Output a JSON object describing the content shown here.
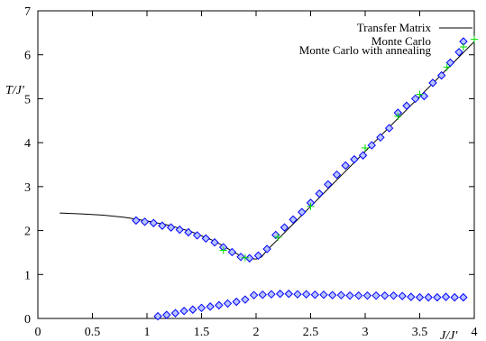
{
  "chart_data": {
    "type": "scatter",
    "xlabel": "J/J'",
    "ylabel": "T/J'",
    "xlim": [
      0,
      4
    ],
    "ylim": [
      0,
      7
    ],
    "xticks": [
      "0",
      "0.5",
      "1",
      "1.5",
      "2",
      "2.5",
      "3",
      "3.5",
      "4"
    ],
    "yticks": [
      "0",
      "1",
      "2",
      "3",
      "4",
      "5",
      "6",
      "7"
    ],
    "grid": false,
    "legend": "top-right",
    "series": [
      {
        "name": "Transfer Matrix",
        "kind": "line",
        "color": "#000000",
        "points": [
          [
            0.2,
            2.4
          ],
          [
            0.4,
            2.38
          ],
          [
            0.6,
            2.35
          ],
          [
            0.8,
            2.3
          ],
          [
            1.0,
            2.22
          ],
          [
            1.2,
            2.12
          ],
          [
            1.4,
            1.98
          ],
          [
            1.6,
            1.78
          ],
          [
            1.7,
            1.65
          ],
          [
            1.8,
            1.5
          ],
          [
            1.9,
            1.38
          ],
          [
            2.0,
            1.35
          ],
          [
            2.05,
            1.4
          ],
          [
            2.1,
            1.55
          ],
          [
            2.2,
            1.8
          ],
          [
            2.3,
            2.05
          ],
          [
            2.4,
            2.3
          ],
          [
            2.5,
            2.55
          ],
          [
            2.6,
            2.8
          ],
          [
            2.7,
            3.05
          ],
          [
            2.8,
            3.3
          ],
          [
            2.9,
            3.55
          ],
          [
            3.0,
            3.8
          ],
          [
            3.1,
            4.05
          ],
          [
            3.2,
            4.3
          ],
          [
            3.3,
            4.55
          ],
          [
            3.4,
            4.8
          ],
          [
            3.5,
            5.05
          ],
          [
            3.6,
            5.3
          ],
          [
            3.7,
            5.55
          ],
          [
            3.8,
            5.8
          ],
          [
            3.9,
            6.05
          ],
          [
            4.0,
            6.3
          ]
        ]
      },
      {
        "name": "Monte Carlo",
        "kind": "diamond",
        "color": "#0000ff",
        "points": [
          [
            0.9,
            2.23
          ],
          [
            0.98,
            2.2
          ],
          [
            1.06,
            2.17
          ],
          [
            1.14,
            2.11
          ],
          [
            1.22,
            2.07
          ],
          [
            1.3,
            2.02
          ],
          [
            1.38,
            1.96
          ],
          [
            1.46,
            1.89
          ],
          [
            1.54,
            1.82
          ],
          [
            1.62,
            1.73
          ],
          [
            1.7,
            1.62
          ],
          [
            1.78,
            1.51
          ],
          [
            1.86,
            1.4
          ],
          [
            1.94,
            1.37
          ],
          [
            2.02,
            1.43
          ],
          [
            2.1,
            1.58
          ],
          [
            2.18,
            1.9
          ],
          [
            2.26,
            2.07
          ],
          [
            2.34,
            2.25
          ],
          [
            2.42,
            2.42
          ],
          [
            2.5,
            2.63
          ],
          [
            2.58,
            2.84
          ],
          [
            2.66,
            3.05
          ],
          [
            2.74,
            3.27
          ],
          [
            2.82,
            3.48
          ],
          [
            2.9,
            3.62
          ],
          [
            2.98,
            3.71
          ],
          [
            3.06,
            3.94
          ],
          [
            3.14,
            4.12
          ],
          [
            3.22,
            4.33
          ],
          [
            3.3,
            4.68
          ],
          [
            3.38,
            4.84
          ],
          [
            3.46,
            5.0
          ],
          [
            3.54,
            5.06
          ],
          [
            3.62,
            5.36
          ],
          [
            3.7,
            5.53
          ],
          [
            3.78,
            5.82
          ],
          [
            3.86,
            6.06
          ],
          [
            1.1,
            0.05
          ],
          [
            1.18,
            0.08
          ],
          [
            1.26,
            0.12
          ],
          [
            1.34,
            0.17
          ],
          [
            1.42,
            0.2
          ],
          [
            1.5,
            0.24
          ],
          [
            1.58,
            0.27
          ],
          [
            1.66,
            0.3
          ],
          [
            1.74,
            0.34
          ],
          [
            1.82,
            0.38
          ],
          [
            1.9,
            0.43
          ],
          [
            1.98,
            0.53
          ],
          [
            2.06,
            0.54
          ],
          [
            2.14,
            0.55
          ],
          [
            2.22,
            0.56
          ],
          [
            2.3,
            0.56
          ],
          [
            2.38,
            0.55
          ],
          [
            2.46,
            0.55
          ],
          [
            2.54,
            0.54
          ],
          [
            2.62,
            0.54
          ],
          [
            2.7,
            0.53
          ],
          [
            2.78,
            0.53
          ],
          [
            2.86,
            0.52
          ],
          [
            2.94,
            0.52
          ],
          [
            3.02,
            0.52
          ],
          [
            3.1,
            0.52
          ],
          [
            3.18,
            0.52
          ],
          [
            3.26,
            0.52
          ],
          [
            3.34,
            0.51
          ],
          [
            3.42,
            0.49
          ],
          [
            3.5,
            0.48
          ],
          [
            3.58,
            0.48
          ],
          [
            3.66,
            0.48
          ],
          [
            3.74,
            0.49
          ],
          [
            3.82,
            0.48
          ],
          [
            3.9,
            0.48
          ]
        ]
      },
      {
        "name": "Monte Carlo with annealing",
        "kind": "plus",
        "color": "#00dd00",
        "points": [
          [
            1.7,
            1.55
          ],
          [
            1.9,
            1.38
          ],
          [
            2.2,
            1.85
          ],
          [
            2.5,
            2.55
          ],
          [
            3.0,
            3.88
          ],
          [
            3.3,
            4.6
          ],
          [
            3.5,
            5.1
          ],
          [
            3.75,
            5.72
          ],
          [
            3.9,
            6.18
          ],
          [
            4.0,
            6.35
          ]
        ]
      }
    ]
  }
}
